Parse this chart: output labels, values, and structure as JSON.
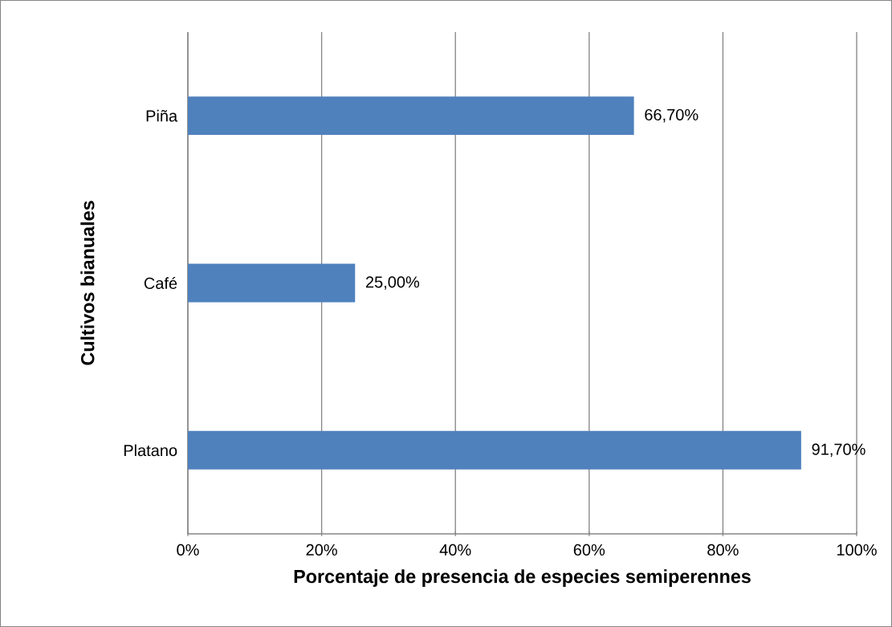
{
  "chart_data": {
    "type": "bar",
    "orientation": "horizontal",
    "xlabel": "Porcentaje de presencia de especies semiperennes",
    "ylabel": "Cultivos bianuales",
    "categories": [
      "Piña",
      "Café",
      "Platano"
    ],
    "values": [
      66.7,
      25.0,
      91.7
    ],
    "value_labels": [
      "66,70%",
      "25,00%",
      "91,70%"
    ],
    "color": "#4f81bd",
    "xlim": [
      0,
      100
    ],
    "xticks": [
      {
        "value": 0,
        "label": "0%"
      },
      {
        "value": 20,
        "label": "20%"
      },
      {
        "value": 40,
        "label": "40%"
      },
      {
        "value": 60,
        "label": "60%"
      },
      {
        "value": 80,
        "label": "80%"
      },
      {
        "value": 100,
        "label": "100%"
      }
    ],
    "grid": "x"
  }
}
